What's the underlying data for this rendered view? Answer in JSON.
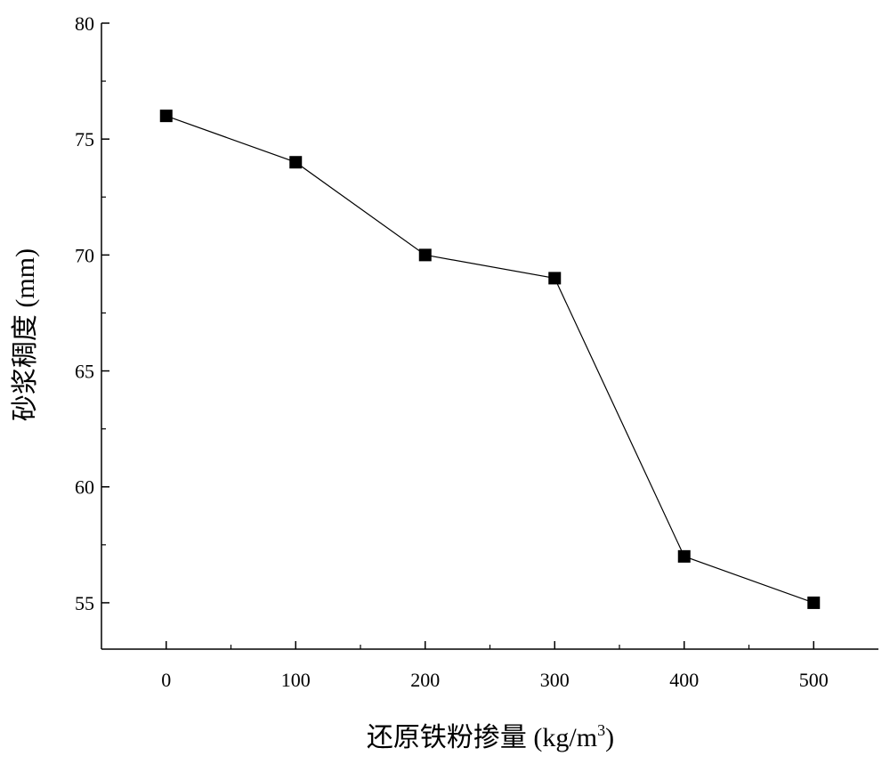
{
  "chart_data": {
    "type": "line",
    "title": "",
    "xlabel": "还原铁粉掺量 (kg/m",
    "xlabel_superscript": "3",
    "xlabel_suffix": ")",
    "ylabel": "砂浆稠度 (mm)",
    "x": [
      0,
      100,
      200,
      300,
      400,
      500
    ],
    "y": [
      76,
      74,
      70,
      69,
      57,
      55
    ],
    "xlim": [
      -50,
      550
    ],
    "ylim": [
      53,
      80
    ],
    "x_ticks": [
      0,
      100,
      200,
      300,
      400,
      500
    ],
    "y_ticks": [
      55,
      60,
      65,
      70,
      75,
      80
    ],
    "marker": "square",
    "line_color": "#000000",
    "marker_color": "#000000",
    "grid": false,
    "legend": false
  }
}
